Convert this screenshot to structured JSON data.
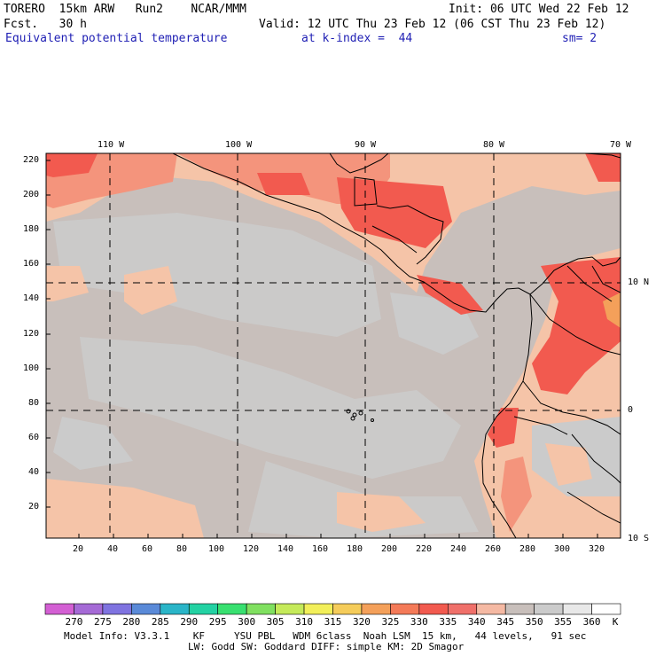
{
  "header": {
    "model": "TORERO  15km ARW   Run2    NCAR/MMM",
    "init": "Init: 06 UTC Wed 22 Feb 12",
    "fcst": "Fcst.   30 h",
    "valid": "Valid: 12 UTC Thu 23 Feb 12 (06 CST Thu 23 Feb 12)",
    "field": "Equivalent potential temperature",
    "level": "at k-index =  44",
    "smoothing": "sm= 2"
  },
  "map": {
    "lon_labels": [
      "110 W",
      "100 W",
      "90 W",
      "80 W",
      "70 W"
    ],
    "lat_labels": [
      "10 N",
      "0",
      "10 S"
    ],
    "left_ticks": [
      "220",
      "200",
      "180",
      "160",
      "140",
      "120",
      "100",
      "80",
      "60",
      "40",
      "20"
    ],
    "bottom_ticks": [
      "20",
      "40",
      "60",
      "80",
      "100",
      "120",
      "140",
      "160",
      "180",
      "200",
      "220",
      "240",
      "260",
      "280",
      "300",
      "320"
    ],
    "background_color": "#c8bfbb",
    "cool_color": "#cbcbcb",
    "warm_colors": [
      "#f5c4a8",
      "#f4947c",
      "#f25a4f"
    ]
  },
  "colorbar": {
    "labels": [
      "270",
      "275",
      "280",
      "285",
      "290",
      "295",
      "300",
      "305",
      "310",
      "315",
      "320",
      "325",
      "330",
      "335",
      "340",
      "345",
      "350",
      "355",
      "360"
    ],
    "unit": "K",
    "colors": [
      "#d35fd3",
      "#a56ad6",
      "#7f73e0",
      "#5a8ad8",
      "#2ab5c8",
      "#23d2a3",
      "#38e070",
      "#80e060",
      "#c5ea5a",
      "#f2ef5a",
      "#f5cc5a",
      "#f4a05a",
      "#f47a58",
      "#f25a4f",
      "#f0706a",
      "#f5b9a3",
      "#c8bfbb",
      "#cbcbcb",
      "#e8e8e8",
      "#ffffff"
    ]
  },
  "footer": {
    "line1": "Model Info: V3.3.1    KF     YSU PBL   WDM 6class  Noah LSM  15 km,   44 levels,   91 sec",
    "line2": "LW: Godd SW: Goddard DIFF: simple KM: 2D Smagor"
  }
}
